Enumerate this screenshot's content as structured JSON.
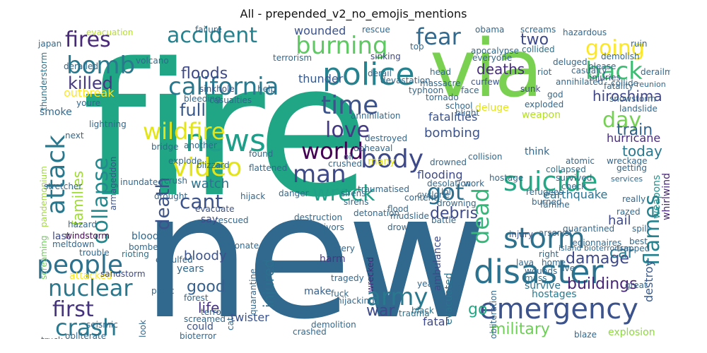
{
  "title": "All - prepended_v2_no_emojis_mentions",
  "words": [
    {
      "text": "fire",
      "color": "#21a685"
    },
    {
      "text": "new",
      "color": "#31688e"
    },
    {
      "text": "via",
      "color": "#7ad151"
    },
    {
      "text": "disaster",
      "color": "#2c728e"
    },
    {
      "text": "emergency",
      "color": "#3b528b"
    },
    {
      "text": "police",
      "color": "#26828e"
    },
    {
      "text": "news",
      "color": "#1f9e89"
    },
    {
      "text": "california",
      "color": "#2a788e"
    },
    {
      "text": "video",
      "color": "#e3e418"
    },
    {
      "text": "suicide",
      "color": "#22a884"
    },
    {
      "text": "storm",
      "color": "#2c728e"
    },
    {
      "text": "people",
      "color": "#2c728e"
    },
    {
      "text": "fear",
      "color": "#31688e"
    },
    {
      "text": "back",
      "color": "#3fbc73"
    },
    {
      "text": "burning",
      "color": "#5ec962"
    },
    {
      "text": "bomb",
      "color": "#2a788e"
    },
    {
      "text": "accident",
      "color": "#26828e"
    },
    {
      "text": "fires",
      "color": "#482878"
    },
    {
      "text": "attack",
      "color": "#2a788e"
    },
    {
      "text": "collapse",
      "color": "#23898e"
    },
    {
      "text": "wildfire",
      "color": "#e3e418"
    },
    {
      "text": "time",
      "color": "#3b528b"
    },
    {
      "text": "world",
      "color": "#440154"
    },
    {
      "text": "body",
      "color": "#3e4989"
    },
    {
      "text": "man",
      "color": "#3e4989"
    },
    {
      "text": "love",
      "color": "#443983"
    },
    {
      "text": "day",
      "color": "#75d054"
    },
    {
      "text": "going",
      "color": "#fde725"
    },
    {
      "text": "wreck",
      "color": "#1fa187"
    },
    {
      "text": "cant",
      "color": "#3b528b"
    },
    {
      "text": "death",
      "color": "#3b528b"
    },
    {
      "text": "got",
      "color": "#2d708e"
    },
    {
      "text": "dead",
      "color": "#35b779"
    },
    {
      "text": "flames",
      "color": "#26828e"
    },
    {
      "text": "army",
      "color": "#2a788e"
    },
    {
      "text": "crash",
      "color": "#2a788e"
    },
    {
      "text": "first",
      "color": "#46337f"
    },
    {
      "text": "nuclear",
      "color": "#2a788e"
    },
    {
      "text": "military",
      "color": "#6ece58"
    },
    {
      "text": "buildings",
      "color": "#482677"
    },
    {
      "text": "injured",
      "color": "#2d708e"
    },
    {
      "text": "hiroshima",
      "color": "#404688"
    },
    {
      "text": "killed",
      "color": "#453781"
    },
    {
      "text": "full",
      "color": "#38588c"
    },
    {
      "text": "floods",
      "color": "#3e4989"
    },
    {
      "text": "two",
      "color": "#3e4989"
    },
    {
      "text": "deaths",
      "color": "#472c7a"
    },
    {
      "text": "families",
      "color": "#a0da39"
    },
    {
      "text": "train",
      "color": "#33638d"
    },
    {
      "text": "today",
      "color": "#2a788e"
    },
    {
      "text": "hurricane",
      "color": "#472d7b"
    },
    {
      "text": "damage",
      "color": "#3e4989"
    },
    {
      "text": "good",
      "color": "#35608d"
    },
    {
      "text": "life",
      "color": "#46337f"
    },
    {
      "text": "war",
      "color": "#3e4989"
    },
    {
      "text": "go",
      "color": "#22a884"
    },
    {
      "text": "car",
      "color": "#2a788e"
    },
    {
      "text": "watch",
      "color": "#2c728e"
    },
    {
      "text": "bombing",
      "color": "#3b528b"
    },
    {
      "text": "debris",
      "color": "#3e4989"
    },
    {
      "text": "wounded",
      "color": "#3b528b"
    },
    {
      "text": "thunder",
      "color": "#38588c"
    },
    {
      "text": "destroy",
      "color": "#38588c"
    },
    {
      "text": "flooding",
      "color": "#3e4989"
    },
    {
      "text": "earthquake",
      "color": "#2c728e"
    },
    {
      "text": "bloody",
      "color": "#3b528b"
    },
    {
      "text": "weapons",
      "color": "#21918c"
    },
    {
      "text": "whirlwind",
      "color": "#482878"
    },
    {
      "text": "ambulance",
      "color": "#3e4989"
    },
    {
      "text": "evacuated",
      "color": "#2c728e"
    },
    {
      "text": "twister",
      "color": "#3b528b"
    },
    {
      "text": "fatalities",
      "color": "#3b528b"
    },
    {
      "text": "hail",
      "color": "#3e4989"
    },
    {
      "text": "fatal",
      "color": "#3e4989"
    },
    {
      "text": "explosion",
      "color": "#8fd744"
    },
    {
      "text": "hostages",
      "color": "#2a788e"
    },
    {
      "text": "survive",
      "color": "#2c728e"
    },
    {
      "text": "could",
      "color": "#3b528b"
    },
    {
      "text": "make",
      "color": "#35608d"
    },
    {
      "text": "harm",
      "color": "#453781"
    },
    {
      "text": "years",
      "color": "#31688e"
    },
    {
      "text": "attacked",
      "color": "#fde725"
    },
    {
      "text": "wrecked",
      "color": "#482878"
    },
    {
      "text": "sandstorm",
      "color": "#3e4989"
    },
    {
      "text": "windstorm",
      "color": "#440154"
    },
    {
      "text": "smoke",
      "color": "#31688e"
    },
    {
      "text": "outbreak",
      "color": "#fde725"
    },
    {
      "text": "blood",
      "color": "#31688e"
    },
    {
      "text": "last",
      "color": "#3e4989"
    },
    {
      "text": "say",
      "color": "#3e4989"
    },
    {
      "text": "rescued",
      "color": "#31688e"
    },
    {
      "text": "mudslide",
      "color": "#31688e"
    },
    {
      "text": "flood",
      "color": "#31688e"
    },
    {
      "text": "evacuate",
      "color": "#3b528b"
    },
    {
      "text": "explode",
      "color": "#31688e"
    },
    {
      "text": "lightning",
      "color": "#31688e"
    },
    {
      "text": "thunderstorm",
      "color": "#2c728e"
    },
    {
      "text": "sinkhole",
      "color": "#3b528b"
    },
    {
      "text": "collided",
      "color": "#2c728e"
    },
    {
      "text": "collapsed",
      "color": "#2c728e"
    },
    {
      "text": "sunk",
      "color": "#3e4989"
    },
    {
      "text": "curfew",
      "color": "#3b528b"
    },
    {
      "text": "screams",
      "color": "#31688e"
    },
    {
      "text": "think",
      "color": "#31688e"
    },
    {
      "text": "deluge",
      "color": "#e3e418"
    },
    {
      "text": "weapon",
      "color": "#b5de2b"
    },
    {
      "text": "survived",
      "color": "#31688e"
    },
    {
      "text": "wreckage",
      "color": "#31688e"
    },
    {
      "text": "famine",
      "color": "#31688e"
    },
    {
      "text": "razed",
      "color": "#31688e"
    },
    {
      "text": "trapped",
      "color": "#31688e"
    },
    {
      "text": "destruction",
      "color": "#31688e"
    },
    {
      "text": "drowning",
      "color": "#31688e"
    },
    {
      "text": "refugees",
      "color": "#31688e"
    },
    {
      "text": "quarantined",
      "color": "#31688e"
    },
    {
      "text": "injuries",
      "color": "#3b528b"
    },
    {
      "text": "sinking",
      "color": "#3e4989"
    },
    {
      "text": "evacuation",
      "color": "#b5de2b"
    },
    {
      "text": "armageddon",
      "color": "#3b528b"
    },
    {
      "text": "mass",
      "color": "#2c728e"
    },
    {
      "text": "work",
      "color": "#31688e"
    },
    {
      "text": "drowned",
      "color": "#31688e"
    },
    {
      "text": "collision",
      "color": "#31688e"
    },
    {
      "text": "injury",
      "color": "#3b528b"
    },
    {
      "text": "hostage",
      "color": "#31688e"
    },
    {
      "text": "catastrophe",
      "color": "#31688e"
    },
    {
      "text": "terrorist",
      "color": "#31688e"
    },
    {
      "text": "screaming",
      "color": "#6ece58"
    },
    {
      "text": "pandemonium",
      "color": "#a0da39"
    },
    {
      "text": "trauma",
      "color": "#2c728e"
    },
    {
      "text": "black",
      "color": "#2c728e"
    },
    {
      "text": "rioting",
      "color": "#2c728e"
    },
    {
      "text": "devastation",
      "color": "#31688e"
    },
    {
      "text": "derailment",
      "color": "#31688e"
    },
    {
      "text": "tornado",
      "color": "#31688e"
    },
    {
      "text": "typhoon",
      "color": "#31688e"
    },
    {
      "text": "massacre",
      "color": "#31688e"
    },
    {
      "text": "many",
      "color": "#e3e418"
    },
    {
      "text": "tragedy",
      "color": "#31688e"
    },
    {
      "text": "panic",
      "color": "#31688e"
    },
    {
      "text": "bombed",
      "color": "#31688e"
    },
    {
      "text": "meltdown",
      "color": "#31688e"
    },
    {
      "text": "hazard",
      "color": "#31688e"
    },
    {
      "text": "engulfed",
      "color": "#31688e"
    },
    {
      "text": "crushed",
      "color": "#31688e"
    },
    {
      "text": "bioterror",
      "color": "#31688e"
    },
    {
      "text": "obliterate",
      "color": "#31688e"
    },
    {
      "text": "wounds",
      "color": "#31688e"
    },
    {
      "text": "demolish",
      "color": "#31688e"
    },
    {
      "text": "landslide",
      "color": "#31688e"
    },
    {
      "text": "blizzard",
      "color": "#31688e"
    },
    {
      "text": "snowstorm",
      "color": "#31688e"
    },
    {
      "text": "apocalypse",
      "color": "#31688e"
    },
    {
      "text": "annihilated",
      "color": "#31688e"
    },
    {
      "text": "collide",
      "color": "#31688e"
    },
    {
      "text": "fatality",
      "color": "#31688e"
    },
    {
      "text": "casualty",
      "color": "#31688e"
    },
    {
      "text": "riot",
      "color": "#31688e"
    },
    {
      "text": "derail",
      "color": "#31688e"
    },
    {
      "text": "please",
      "color": "#31688e"
    },
    {
      "text": "ruin",
      "color": "#31688e"
    },
    {
      "text": "deluged",
      "color": "#31688e"
    },
    {
      "text": "help",
      "color": "#31688e"
    },
    {
      "text": "bleeding",
      "color": "#31688e"
    },
    {
      "text": "casualties",
      "color": "#31688e"
    },
    {
      "text": "upheaval",
      "color": "#31688e"
    },
    {
      "text": "oil",
      "color": "#31688e"
    },
    {
      "text": "destroyed",
      "color": "#31688e"
    },
    {
      "text": "hijack",
      "color": "#31688e"
    },
    {
      "text": "danger",
      "color": "#31688e"
    },
    {
      "text": "sirens",
      "color": "#31688e"
    },
    {
      "text": "cyclone",
      "color": "#31688e"
    },
    {
      "text": "desolation",
      "color": "#31688e"
    },
    {
      "text": "burned",
      "color": "#31688e"
    },
    {
      "text": "arsonist",
      "color": "#31688e"
    },
    {
      "text": "lava",
      "color": "#31688e"
    },
    {
      "text": "right",
      "color": "#31688e"
    },
    {
      "text": "home",
      "color": "#31688e"
    },
    {
      "text": "live",
      "color": "#31688e"
    },
    {
      "text": "best",
      "color": "#31688e"
    },
    {
      "text": "year",
      "color": "#31688e"
    },
    {
      "text": "drown",
      "color": "#31688e"
    },
    {
      "text": "hijacking",
      "color": "#31688e"
    },
    {
      "text": "demolition",
      "color": "#31688e"
    },
    {
      "text": "crashed",
      "color": "#31688e"
    },
    {
      "text": "siren",
      "color": "#31688e"
    },
    {
      "text": "quarantine",
      "color": "#31688e"
    },
    {
      "text": "detonate",
      "color": "#31688e"
    },
    {
      "text": "forest",
      "color": "#31688e"
    },
    {
      "text": "screamed",
      "color": "#31688e"
    },
    {
      "text": "look",
      "color": "#31688e"
    },
    {
      "text": "seismic",
      "color": "#31688e"
    },
    {
      "text": "obliteration",
      "color": "#31688e"
    },
    {
      "text": "blaze",
      "color": "#31688e"
    },
    {
      "text": "great",
      "color": "#31688e"
    },
    {
      "text": "volcano",
      "color": "#31688e"
    },
    {
      "text": "terrorism",
      "color": "#31688e"
    },
    {
      "text": "hazardous",
      "color": "#31688e"
    },
    {
      "text": "obama",
      "color": "#31688e"
    },
    {
      "text": "failure",
      "color": "#31688e"
    },
    {
      "text": "rescue",
      "color": "#31688e"
    },
    {
      "text": "japan",
      "color": "#31688e"
    },
    {
      "text": "derailed",
      "color": "#31688e"
    },
    {
      "text": "trouble",
      "color": "#31688e"
    },
    {
      "text": "youre",
      "color": "#31688e"
    },
    {
      "text": "flattened",
      "color": "#31688e"
    },
    {
      "text": "crush",
      "color": "#31688e"
    },
    {
      "text": "inundated",
      "color": "#31688e"
    },
    {
      "text": "detonation",
      "color": "#31688e"
    },
    {
      "text": "survivors",
      "color": "#31688e"
    },
    {
      "text": "drought",
      "color": "#31688e"
    },
    {
      "text": "annihilation",
      "color": "#31688e"
    },
    {
      "text": "traumatised",
      "color": "#31688e"
    },
    {
      "text": "school",
      "color": "#31688e"
    },
    {
      "text": "blight",
      "color": "#31688e"
    },
    {
      "text": "face",
      "color": "#31688e"
    },
    {
      "text": "god",
      "color": "#31688e"
    },
    {
      "text": "atomic",
      "color": "#31688e"
    },
    {
      "text": "check",
      "color": "#31688e"
    },
    {
      "text": "lol",
      "color": "#31688e"
    },
    {
      "text": "found",
      "color": "#31688e"
    },
    {
      "text": "another",
      "color": "#31688e"
    },
    {
      "text": "bridge",
      "color": "#31688e"
    },
    {
      "text": "really",
      "color": "#31688e"
    },
    {
      "text": "getting",
      "color": "#31688e"
    },
    {
      "text": "spill",
      "color": "#31688e"
    },
    {
      "text": "top",
      "color": "#31688e"
    },
    {
      "text": "stretcher",
      "color": "#31688e"
    },
    {
      "text": "battle",
      "color": "#31688e"
    },
    {
      "text": "content",
      "color": "#31688e"
    },
    {
      "text": "everyone",
      "color": "#31688e"
    },
    {
      "text": "exploded",
      "color": "#31688e"
    },
    {
      "text": "fuck",
      "color": "#31688e"
    },
    {
      "text": "shit",
      "color": "#31688e"
    },
    {
      "text": "every",
      "color": "#31688e"
    },
    {
      "text": "next",
      "color": "#31688e"
    },
    {
      "text": "head",
      "color": "#31688e"
    },
    {
      "text": "truck",
      "color": "#31688e"
    },
    {
      "text": "sirens",
      "color": "#31688e"
    },
    {
      "text": "legionnaires",
      "color": "#31688e"
    },
    {
      "text": "island bioterrorism",
      "color": "#31688e"
    },
    {
      "text": "services",
      "color": "#31688e"
    },
    {
      "text": "reunion",
      "color": "#31688e"
    }
  ]
}
